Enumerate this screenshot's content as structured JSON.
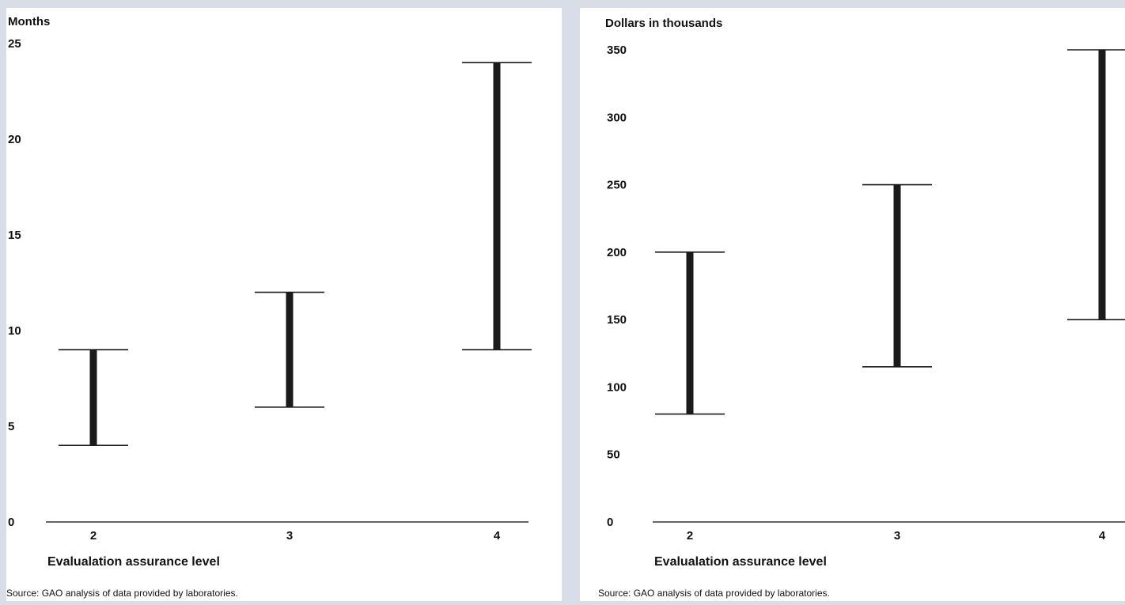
{
  "chart_data": [
    {
      "type": "range",
      "title": "",
      "ylabel": "Months",
      "xlabel": "Evalualation assurance level",
      "ylim": [
        0,
        25
      ],
      "yticks": [
        0,
        5,
        10,
        15,
        20,
        25
      ],
      "categories": [
        "2",
        "3",
        "4"
      ],
      "series": [
        {
          "low": [
            4,
            6,
            9
          ],
          "high": [
            9,
            12,
            24
          ]
        }
      ],
      "grid": false,
      "source": "Source: GAO analysis of data provided by laboratories."
    },
    {
      "type": "range",
      "title": "",
      "ylabel": "Dollars in thousands",
      "xlabel": "Evalualation assurance level",
      "ylim": [
        0,
        350
      ],
      "yticks": [
        0,
        50,
        100,
        150,
        200,
        250,
        300,
        350
      ],
      "categories": [
        "2",
        "3",
        "4"
      ],
      "series": [
        {
          "low": [
            80,
            115,
            150
          ],
          "high": [
            200,
            250,
            350
          ]
        }
      ],
      "grid": false,
      "source": "Source: GAO analysis of data provided by laboratories."
    }
  ],
  "colors": {
    "frame": "#d9dde8",
    "panel": "#ffffff",
    "bar": "#1a1a1a",
    "axis": "#333333"
  }
}
